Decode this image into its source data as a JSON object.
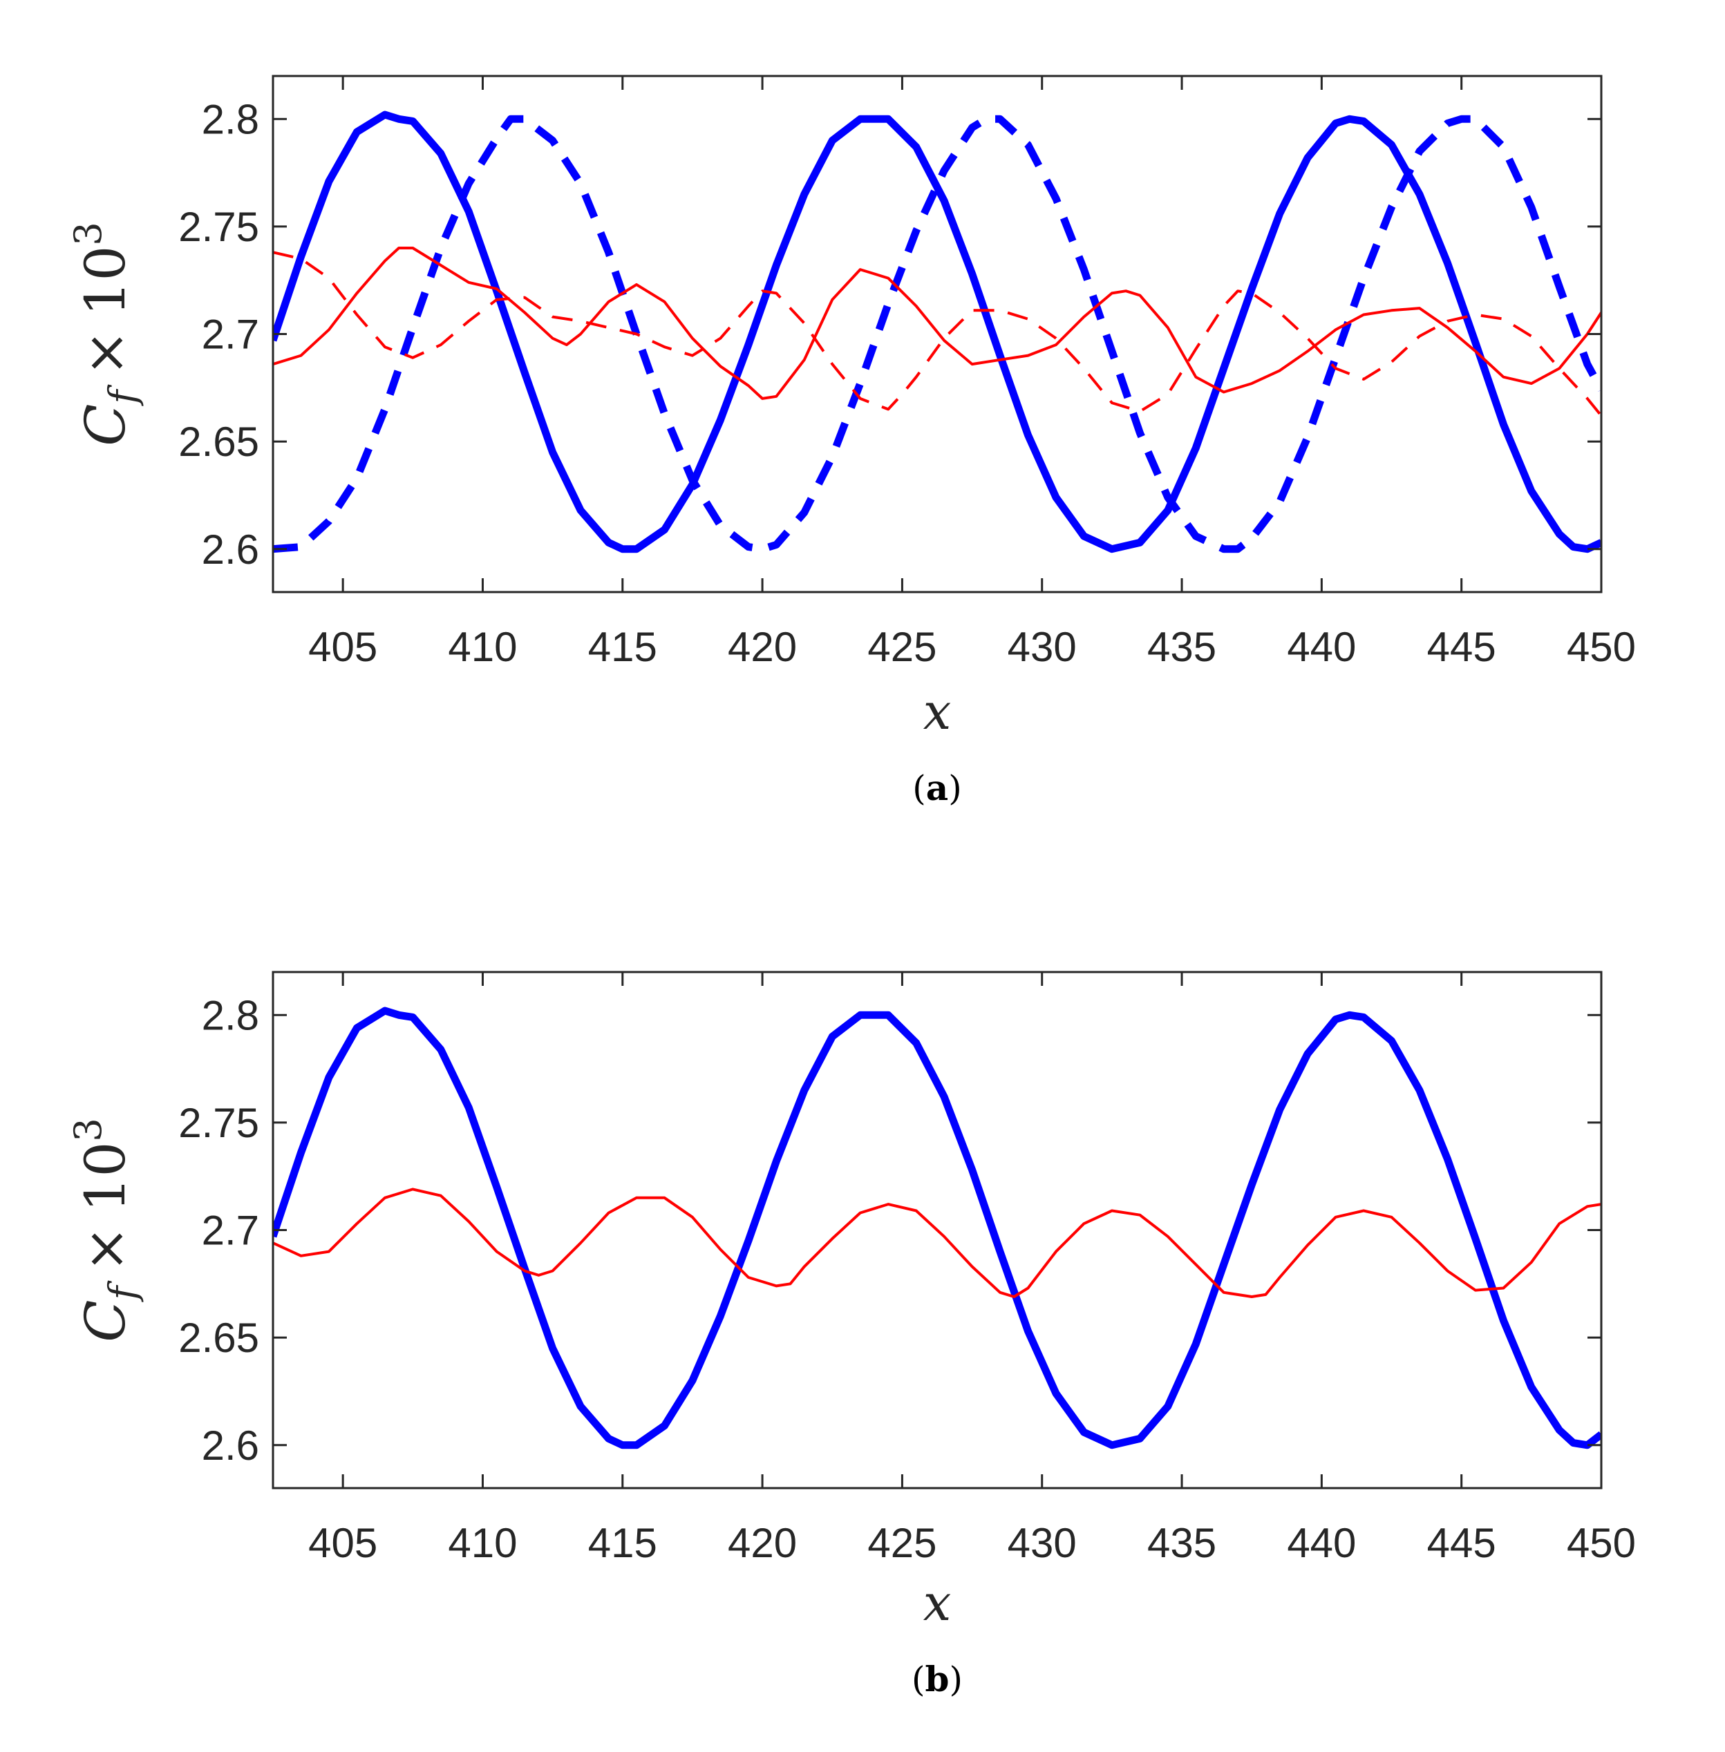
{
  "chart_data": [
    {
      "type": "line",
      "caption_letter": "a",
      "xlabel": "x",
      "ylabel_var": "C",
      "ylabel_sub": "f",
      "ylabel_times": "×",
      "ylabel_base": "10",
      "ylabel_exp": "3",
      "xlim": [
        402.5,
        450
      ],
      "ylim": [
        2.58,
        2.82
      ],
      "xticks": [
        405,
        410,
        415,
        420,
        425,
        430,
        435,
        440,
        445,
        450
      ],
      "yticks": [
        2.6,
        2.65,
        2.7,
        2.75,
        2.8
      ],
      "ytick_labels": [
        "2.6",
        "2.65",
        "2.7",
        "2.75",
        "2.8"
      ],
      "series": [
        {
          "color": "#0000ff",
          "style": "solid",
          "width": "thick",
          "x": [
            402.5,
            403.5,
            404.5,
            405.5,
            406.5,
            407.0,
            407.5,
            408.5,
            409.5,
            410.5,
            411.5,
            412.5,
            413.5,
            414.5,
            415.0,
            415.5,
            416.5,
            417.5,
            418.5,
            419.5,
            420.5,
            421.5,
            422.5,
            423.5,
            424.0,
            424.5,
            425.5,
            426.5,
            427.5,
            428.5,
            429.5,
            430.5,
            431.5,
            432.5,
            433.5,
            434.5,
            435.5,
            436.5,
            437.5,
            438.5,
            439.5,
            440.5,
            441.0,
            441.5,
            442.5,
            443.5,
            444.5,
            445.5,
            446.5,
            447.5,
            448.5,
            449.0,
            449.5,
            450.0
          ],
          "y": [
            2.697,
            2.736,
            2.771,
            2.794,
            2.802,
            2.8,
            2.799,
            2.784,
            2.757,
            2.72,
            2.682,
            2.645,
            2.618,
            2.603,
            2.6,
            2.6,
            2.609,
            2.63,
            2.66,
            2.695,
            2.732,
            2.765,
            2.79,
            2.8,
            2.8,
            2.8,
            2.787,
            2.762,
            2.728,
            2.69,
            2.653,
            2.624,
            2.606,
            2.6,
            2.603,
            2.618,
            2.647,
            2.684,
            2.721,
            2.756,
            2.782,
            2.798,
            2.8,
            2.799,
            2.788,
            2.765,
            2.733,
            2.696,
            2.658,
            2.627,
            2.607,
            2.601,
            2.6,
            2.603
          ]
        },
        {
          "color": "#0000ff",
          "style": "dashed",
          "width": "thick",
          "x": [
            402.5,
            403.5,
            404.5,
            405.5,
            406.5,
            407.5,
            408.5,
            409.5,
            410.5,
            411.0,
            411.5,
            412.5,
            413.5,
            414.5,
            415.5,
            416.5,
            417.5,
            418.5,
            419.5,
            420.0,
            420.5,
            421.5,
            422.5,
            423.5,
            424.5,
            425.5,
            426.5,
            427.5,
            428.0,
            428.5,
            429.5,
            430.5,
            431.5,
            432.5,
            433.5,
            434.5,
            435.5,
            436.5,
            437.0,
            437.5,
            438.5,
            439.5,
            440.5,
            441.5,
            442.5,
            443.5,
            444.5,
            445.0,
            445.5,
            446.5,
            447.5,
            448.5,
            449.5,
            450.0
          ],
          "y": [
            2.6,
            2.601,
            2.613,
            2.633,
            2.665,
            2.703,
            2.74,
            2.77,
            2.791,
            2.8,
            2.8,
            2.79,
            2.77,
            2.738,
            2.7,
            2.663,
            2.632,
            2.611,
            2.601,
            2.6,
            2.602,
            2.617,
            2.643,
            2.677,
            2.714,
            2.748,
            2.776,
            2.796,
            2.8,
            2.8,
            2.788,
            2.763,
            2.73,
            2.692,
            2.654,
            2.624,
            2.606,
            2.6,
            2.6,
            2.605,
            2.622,
            2.652,
            2.689,
            2.726,
            2.759,
            2.785,
            2.798,
            2.8,
            2.8,
            2.787,
            2.759,
            2.722,
            2.686,
            2.674
          ]
        },
        {
          "color": "#ff0000",
          "style": "solid",
          "width": "thin",
          "x": [
            402.5,
            403.5,
            404.5,
            405.5,
            406.5,
            407.0,
            407.5,
            408.5,
            409.5,
            410.5,
            411.5,
            412.5,
            413.0,
            413.5,
            414.5,
            415.5,
            416.5,
            417.5,
            418.5,
            419.5,
            420.0,
            420.5,
            421.5,
            422.5,
            423.5,
            424.5,
            425.5,
            426.5,
            427.5,
            428.5,
            429.5,
            430.5,
            431.5,
            432.5,
            433.0,
            433.5,
            434.5,
            435.5,
            436.5,
            437.5,
            438.5,
            439.5,
            440.5,
            441.5,
            442.5,
            443.5,
            444.5,
            445.5,
            446.5,
            447.5,
            448.5,
            449.5,
            450.0
          ],
          "y": [
            2.686,
            2.69,
            2.702,
            2.719,
            2.734,
            2.74,
            2.74,
            2.732,
            2.724,
            2.721,
            2.71,
            2.698,
            2.695,
            2.7,
            2.715,
            2.723,
            2.715,
            2.698,
            2.685,
            2.676,
            2.67,
            2.671,
            2.688,
            2.716,
            2.73,
            2.726,
            2.713,
            2.697,
            2.686,
            2.688,
            2.69,
            2.695,
            2.708,
            2.719,
            2.72,
            2.718,
            2.703,
            2.68,
            2.673,
            2.677,
            2.683,
            2.692,
            2.702,
            2.709,
            2.711,
            2.712,
            2.703,
            2.692,
            2.68,
            2.677,
            2.684,
            2.7,
            2.71
          ]
        },
        {
          "color": "#ff0000",
          "style": "dashed",
          "width": "thin",
          "x": [
            402.5,
            403.5,
            404.5,
            405.5,
            406.5,
            407.5,
            408.5,
            409.5,
            410.5,
            411.5,
            412.5,
            413.5,
            414.5,
            415.5,
            416.5,
            417.5,
            418.5,
            419.5,
            420.0,
            420.5,
            421.5,
            422.5,
            423.5,
            424.5,
            425.0,
            425.5,
            426.5,
            427.5,
            428.5,
            429.5,
            430.5,
            431.5,
            432.5,
            433.5,
            434.5,
            435.5,
            436.5,
            437.0,
            437.5,
            438.5,
            439.5,
            440.5,
            441.5,
            442.5,
            443.5,
            444.5,
            445.5,
            446.5,
            447.5,
            448.5,
            449.5,
            450.0
          ],
          "y": [
            2.738,
            2.735,
            2.726,
            2.709,
            2.694,
            2.689,
            2.695,
            2.706,
            2.716,
            2.717,
            2.708,
            2.706,
            2.703,
            2.7,
            2.694,
            2.69,
            2.698,
            2.713,
            2.72,
            2.719,
            2.705,
            2.686,
            2.67,
            2.665,
            2.672,
            2.68,
            2.698,
            2.711,
            2.711,
            2.707,
            2.698,
            2.684,
            2.668,
            2.664,
            2.672,
            2.693,
            2.713,
            2.72,
            2.719,
            2.71,
            2.698,
            2.684,
            2.679,
            2.687,
            2.699,
            2.706,
            2.709,
            2.707,
            2.699,
            2.684,
            2.67,
            2.662
          ]
        }
      ]
    },
    {
      "type": "line",
      "caption_letter": "b",
      "xlabel": "x",
      "ylabel_var": "C",
      "ylabel_sub": "f",
      "ylabel_times": "×",
      "ylabel_base": "10",
      "ylabel_exp": "3",
      "xlim": [
        402.5,
        450
      ],
      "ylim": [
        2.58,
        2.82
      ],
      "xticks": [
        405,
        410,
        415,
        420,
        425,
        430,
        435,
        440,
        445,
        450
      ],
      "yticks": [
        2.6,
        2.65,
        2.7,
        2.75,
        2.8
      ],
      "ytick_labels": [
        "2.6",
        "2.65",
        "2.7",
        "2.75",
        "2.8"
      ],
      "series": [
        {
          "color": "#0000ff",
          "style": "solid",
          "width": "thick",
          "x": [
            402.5,
            403.5,
            404.5,
            405.5,
            406.5,
            407.0,
            407.5,
            408.5,
            409.5,
            410.5,
            411.5,
            412.5,
            413.5,
            414.5,
            415.0,
            415.5,
            416.5,
            417.5,
            418.5,
            419.5,
            420.5,
            421.5,
            422.5,
            423.5,
            424.0,
            424.5,
            425.5,
            426.5,
            427.5,
            428.5,
            429.5,
            430.5,
            431.5,
            432.5,
            433.5,
            434.5,
            435.5,
            436.5,
            437.5,
            438.5,
            439.5,
            440.5,
            441.0,
            441.5,
            442.5,
            443.5,
            444.5,
            445.5,
            446.5,
            447.5,
            448.5,
            449.0,
            449.5,
            450.0
          ],
          "y": [
            2.697,
            2.736,
            2.771,
            2.794,
            2.802,
            2.8,
            2.799,
            2.784,
            2.757,
            2.72,
            2.682,
            2.645,
            2.618,
            2.603,
            2.6,
            2.6,
            2.609,
            2.63,
            2.66,
            2.695,
            2.732,
            2.765,
            2.79,
            2.8,
            2.8,
            2.8,
            2.787,
            2.762,
            2.728,
            2.69,
            2.653,
            2.624,
            2.606,
            2.6,
            2.603,
            2.618,
            2.647,
            2.684,
            2.721,
            2.756,
            2.782,
            2.798,
            2.8,
            2.799,
            2.788,
            2.765,
            2.733,
            2.696,
            2.658,
            2.627,
            2.607,
            2.601,
            2.6,
            2.605
          ]
        },
        {
          "color": "#ff0000",
          "style": "solid",
          "width": "thin",
          "x": [
            402.5,
            403.5,
            404.5,
            405.5,
            406.5,
            407.5,
            408.5,
            409.5,
            410.5,
            411.5,
            412.0,
            412.5,
            413.5,
            414.5,
            415.5,
            416.5,
            417.5,
            418.5,
            419.5,
            420.5,
            421.0,
            421.5,
            422.5,
            423.5,
            424.5,
            425.5,
            426.5,
            427.5,
            428.5,
            429.0,
            429.5,
            430.5,
            431.5,
            432.5,
            433.5,
            434.5,
            435.5,
            436.5,
            437.5,
            438.0,
            438.5,
            439.5,
            440.5,
            441.5,
            442.5,
            443.5,
            444.5,
            445.5,
            446.5,
            447.5,
            448.5,
            449.5,
            450.0
          ],
          "y": [
            2.694,
            2.688,
            2.69,
            2.703,
            2.715,
            2.719,
            2.716,
            2.704,
            2.69,
            2.681,
            2.679,
            2.681,
            2.694,
            2.708,
            2.715,
            2.715,
            2.706,
            2.691,
            2.678,
            2.674,
            2.675,
            2.683,
            2.696,
            2.708,
            2.712,
            2.709,
            2.697,
            2.683,
            2.671,
            2.669,
            2.673,
            2.69,
            2.703,
            2.709,
            2.707,
            2.697,
            2.684,
            2.671,
            2.669,
            2.67,
            2.678,
            2.693,
            2.706,
            2.709,
            2.706,
            2.694,
            2.681,
            2.672,
            2.673,
            2.685,
            2.703,
            2.711,
            2.712
          ]
        }
      ]
    }
  ]
}
